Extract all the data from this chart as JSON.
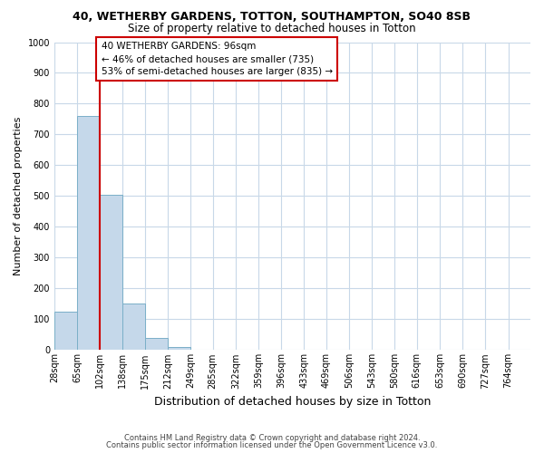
{
  "title1": "40, WETHERBY GARDENS, TOTTON, SOUTHAMPTON, SO40 8SB",
  "title2": "Size of property relative to detached houses in Totton",
  "xlabel": "Distribution of detached houses by size in Totton",
  "ylabel": "Number of detached properties",
  "footnote1": "Contains HM Land Registry data © Crown copyright and database right 2024.",
  "footnote2": "Contains public sector information licensed under the Open Government Licence v3.0.",
  "annotation_title": "40 WETHERBY GARDENS: 96sqm",
  "annotation_line1": "← 46% of detached houses are smaller (735)",
  "annotation_line2": "53% of semi-detached houses are larger (835) →",
  "property_line_x": 102,
  "bin_labels": [
    "28sqm",
    "65sqm",
    "102sqm",
    "138sqm",
    "175sqm",
    "212sqm",
    "249sqm",
    "285sqm",
    "322sqm",
    "359sqm",
    "396sqm",
    "433sqm",
    "469sqm",
    "506sqm",
    "543sqm",
    "580sqm",
    "616sqm",
    "653sqm",
    "690sqm",
    "727sqm",
    "764sqm"
  ],
  "bin_edges": [
    28,
    65,
    102,
    138,
    175,
    212,
    249,
    285,
    322,
    359,
    396,
    433,
    469,
    506,
    543,
    580,
    616,
    653,
    690,
    727,
    764,
    800
  ],
  "bar_values": [
    125,
    760,
    505,
    150,
    40,
    10,
    0,
    0,
    0,
    0,
    0,
    0,
    0,
    0,
    0,
    0,
    0,
    0,
    0,
    0,
    0
  ],
  "bar_color": "#c5d8ea",
  "bar_edge_color": "#7aafc8",
  "property_line_color": "#cc0000",
  "annotation_box_color": "#cc0000",
  "background_color": "#ffffff",
  "grid_color": "#c8d8e8",
  "ylim": [
    0,
    1000
  ],
  "yticks": [
    0,
    100,
    200,
    300,
    400,
    500,
    600,
    700,
    800,
    900,
    1000
  ],
  "title1_fontsize": 9,
  "title2_fontsize": 8.5,
  "ylabel_fontsize": 8,
  "xlabel_fontsize": 9,
  "tick_fontsize": 7,
  "annot_fontsize": 7.5,
  "footnote_fontsize": 6
}
